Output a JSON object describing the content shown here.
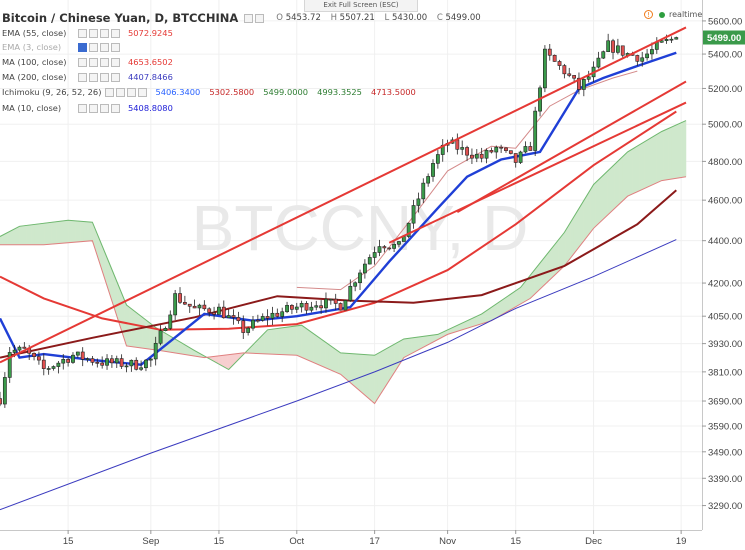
{
  "exit_button": "Exit Full Screen (ESC)",
  "header": {
    "title": "Bitcoin / Chinese Yuan, D, BTCCHINA",
    "ohlc": {
      "o_label": "O",
      "o": "5453.72",
      "h_label": "H",
      "h": "5507.21",
      "l_label": "L",
      "l": "5430.00",
      "c_label": "C",
      "c": "5499.00"
    }
  },
  "status": {
    "warning_icon": "alert-circle-icon",
    "realtime": "realtime"
  },
  "indicators": [
    {
      "name": "EMA (55, close)",
      "value": "5072.9245",
      "color": "#e53935",
      "visible": true
    },
    {
      "name": "EMA (3, close)",
      "value": "",
      "color": "#8ab4e8",
      "visible": false
    },
    {
      "name": "MA (100, close)",
      "value": "4653.6502",
      "color": "#e53935",
      "visible": true
    },
    {
      "name": "MA (200, close)",
      "value": "4407.8466",
      "color": "#3b3bbf",
      "visible": true
    },
    {
      "name": "Ichimoku (9, 26, 52, 26)",
      "values": [
        "5406.3400",
        "5302.5800",
        "5499.0000",
        "4993.3525",
        "4713.5000"
      ],
      "colors": [
        "#2962ff",
        "#c62828",
        "#2e7d32",
        "#2e7d32",
        "#c62828"
      ],
      "visible": true
    },
    {
      "name": "MA (10, close)",
      "value": "5408.8080",
      "color": "#1b1bd6",
      "visible": true
    }
  ],
  "watermark": "BTCCNY, D",
  "colors": {
    "up": "#3a9a4a",
    "down": "#e05050",
    "candle_body": "#222222",
    "tenkan": "#1f3fd6",
    "ema55": "#e53935",
    "ma100": "#8b1a1a",
    "ma200": "#3b3bbf",
    "cloud_bull": "#cfe8cc",
    "cloud_bear": "#f7cfcf",
    "cloud_edge_bull": "#6fb86f",
    "cloud_edge_bear": "#e08080",
    "trend": "#e53935"
  },
  "chart_data": {
    "type": "candlestick",
    "title": "Bitcoin / Chinese Yuan, D, BTCCHINA",
    "y_scale": "log",
    "ylim": [
      3210,
      5680
    ],
    "y_ticks": [
      3290,
      3390,
      3490,
      3590,
      3690,
      3810,
      3930,
      4050,
      4200,
      4400,
      4600,
      4800,
      5000,
      5200,
      5400,
      5600
    ],
    "x_ticks": [
      {
        "label": "15",
        "date": "2016-08-15"
      },
      {
        "label": "Sep",
        "date": "2016-09-01"
      },
      {
        "label": "15",
        "date": "2016-09-15"
      },
      {
        "label": "Oct",
        "date": "2016-10-01"
      },
      {
        "label": "17",
        "date": "2016-10-17"
      },
      {
        "label": "Nov",
        "date": "2016-11-01"
      },
      {
        "label": "15",
        "date": "2016-11-15"
      },
      {
        "label": "Dec",
        "date": "2016-12-01"
      },
      {
        "label": "19",
        "date": "2016-12-19"
      }
    ],
    "x_range": [
      "2016-08-01",
      "2016-12-20"
    ],
    "last_price_label": "5499.00",
    "series": [
      {
        "name": "EMA (55, close)",
        "points": [
          [
            "2016-08-01",
            4230
          ],
          [
            "2016-08-10",
            4130
          ],
          [
            "2016-08-22",
            4040
          ],
          [
            "2016-09-03",
            3990
          ],
          [
            "2016-09-17",
            3995
          ],
          [
            "2016-10-01",
            4015
          ],
          [
            "2016-10-17",
            4110
          ],
          [
            "2016-11-01",
            4260
          ],
          [
            "2016-11-15",
            4480
          ],
          [
            "2016-12-01",
            4780
          ],
          [
            "2016-12-18",
            5070
          ]
        ]
      },
      {
        "name": "MA (100, close)",
        "points": [
          [
            "2016-08-01",
            3870
          ],
          [
            "2016-08-20",
            3955
          ],
          [
            "2016-09-10",
            4045
          ],
          [
            "2016-09-27",
            4140
          ],
          [
            "2016-10-12",
            4120
          ],
          [
            "2016-10-25",
            4110
          ],
          [
            "2016-11-08",
            4145
          ],
          [
            "2016-11-25",
            4280
          ],
          [
            "2016-12-10",
            4480
          ],
          [
            "2016-12-18",
            4650
          ]
        ]
      },
      {
        "name": "MA (200, close)",
        "points": [
          [
            "2016-08-01",
            3275
          ],
          [
            "2016-09-01",
            3485
          ],
          [
            "2016-10-01",
            3690
          ],
          [
            "2016-10-17",
            3810
          ],
          [
            "2016-11-01",
            3935
          ],
          [
            "2016-11-15",
            4085
          ],
          [
            "2016-12-01",
            4230
          ],
          [
            "2016-12-18",
            4405
          ]
        ]
      },
      {
        "name": "MA (10, close)",
        "points": [
          [
            "2016-08-01",
            4040
          ],
          [
            "2016-08-05",
            3870
          ],
          [
            "2016-08-10",
            3885
          ],
          [
            "2016-08-20",
            3860
          ],
          [
            "2016-08-30",
            3840
          ],
          [
            "2016-09-05",
            3940
          ],
          [
            "2016-09-12",
            4060
          ],
          [
            "2016-09-22",
            4030
          ],
          [
            "2016-10-01",
            4050
          ],
          [
            "2016-10-12",
            4090
          ],
          [
            "2016-10-20",
            4300
          ],
          [
            "2016-10-30",
            4560
          ],
          [
            "2016-11-05",
            4720
          ],
          [
            "2016-11-12",
            4810
          ],
          [
            "2016-11-20",
            4850
          ],
          [
            "2016-11-28",
            5200
          ],
          [
            "2016-12-03",
            5260
          ],
          [
            "2016-12-10",
            5330
          ],
          [
            "2016-12-18",
            5408
          ]
        ]
      }
    ],
    "trendlines": [
      [
        [
          "2016-08-01",
          3850
        ],
        [
          "2016-12-20",
          5560
        ]
      ],
      [
        [
          "2016-11-03",
          4540
        ],
        [
          "2016-12-20",
          5240
        ]
      ],
      [
        [
          "2016-10-20",
          4390
        ],
        [
          "2016-12-20",
          5120
        ]
      ]
    ]
  }
}
